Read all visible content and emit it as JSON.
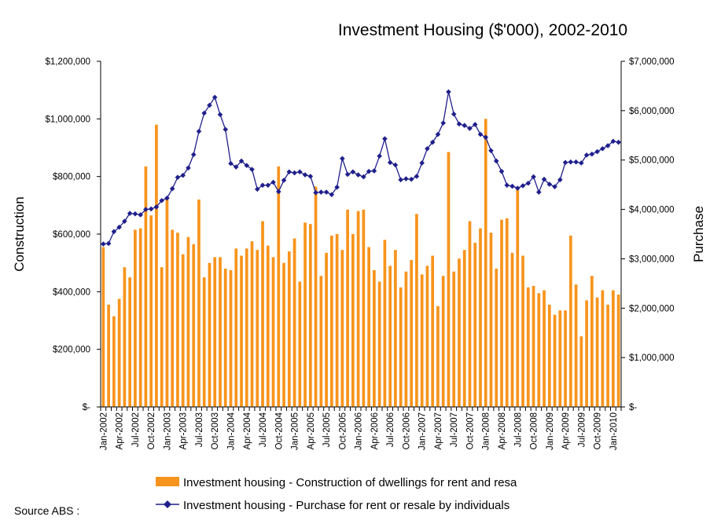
{
  "chart_data": {
    "type": "bar+line",
    "title": "Investment Housing ($'000), 2002-2010",
    "ylabel_left": "Construction",
    "ylabel_right": "Purchase",
    "ylim_left": [
      0,
      1200000
    ],
    "ylim_right": [
      0,
      7000000
    ],
    "left_ticks": [
      "$-",
      "$200,000",
      "$400,000",
      "$600,000",
      "$800,000",
      "$1,000,000",
      "$1,200,000"
    ],
    "right_ticks": [
      "$-",
      "$1,000,000",
      "$2,000,000",
      "$3,000,000",
      "$4,000,000",
      "$5,000,000",
      "$6,000,000",
      "$7,000,000"
    ],
    "x_tick_labels": [
      "Jan-2002",
      "Apr-2002",
      "Jul-2002",
      "Oct-2002",
      "Jan-2003",
      "Apr-2003",
      "Jul-2003",
      "Oct-2003",
      "Jan-2004",
      "Apr-2004",
      "Jul-2004",
      "Oct-2004",
      "Jan-2005",
      "Apr-2005",
      "Jul-2005",
      "Oct-2005",
      "Jan-2006",
      "Apr-2006",
      "Jul-2006",
      "Oct-2006",
      "Jan-2007",
      "Apr-2007",
      "Jul-2007",
      "Oct-2007",
      "Jan-2008",
      "Apr-2008",
      "Jul-2008",
      "Oct-2008",
      "Jan-2009",
      "Apr-2009",
      "Jul-2009",
      "Oct-2009",
      "Jan-2010"
    ],
    "start": "Jan-2002",
    "months": 98,
    "series": [
      {
        "name": "Investment housing - Construction of dwellings for rent and resale",
        "type": "bar",
        "axis": "left",
        "color": "#F7941D",
        "values": [
          555000,
          355000,
          315000,
          375000,
          485000,
          450000,
          615000,
          620000,
          835000,
          665000,
          980000,
          485000,
          725000,
          615000,
          605000,
          530000,
          590000,
          565000,
          720000,
          450000,
          500000,
          520000,
          520000,
          480000,
          475000,
          550000,
          525000,
          550000,
          575000,
          545000,
          645000,
          560000,
          520000,
          835000,
          500000,
          540000,
          585000,
          435000,
          640000,
          635000,
          765000,
          455000,
          535000,
          595000,
          600000,
          545000,
          685000,
          600000,
          680000,
          685000,
          555000,
          475000,
          435000,
          580000,
          490000,
          545000,
          415000,
          470000,
          510000,
          670000,
          460000,
          490000,
          525000,
          350000,
          455000,
          885000,
          470000,
          515000,
          545000,
          645000,
          570000,
          620000,
          1000000,
          605000,
          480000,
          650000,
          655000,
          535000,
          760000,
          525000,
          415000,
          420000,
          395000,
          405000,
          355000,
          320000,
          335000,
          335000,
          595000,
          425000,
          245000,
          370000,
          455000,
          380000,
          405000,
          355000,
          405000,
          390000
        ]
      },
      {
        "name": "Investment housing - Purchase for rent or resale by individuals",
        "type": "line",
        "axis": "right",
        "color": "#1F1F8C",
        "marker": "diamond",
        "values": [
          3300000,
          3310000,
          3550000,
          3640000,
          3760000,
          3920000,
          3910000,
          3890000,
          4000000,
          4010000,
          4050000,
          4180000,
          4230000,
          4420000,
          4650000,
          4690000,
          4840000,
          5110000,
          5580000,
          5950000,
          6110000,
          6270000,
          5920000,
          5620000,
          4930000,
          4860000,
          4980000,
          4890000,
          4810000,
          4410000,
          4490000,
          4490000,
          4550000,
          4360000,
          4590000,
          4760000,
          4740000,
          4760000,
          4700000,
          4670000,
          4340000,
          4350000,
          4350000,
          4300000,
          4450000,
          5030000,
          4710000,
          4760000,
          4700000,
          4660000,
          4770000,
          4780000,
          5080000,
          5430000,
          4950000,
          4900000,
          4600000,
          4620000,
          4610000,
          4670000,
          4940000,
          5230000,
          5360000,
          5520000,
          5750000,
          6380000,
          5930000,
          5730000,
          5700000,
          5640000,
          5720000,
          5520000,
          5460000,
          5190000,
          4980000,
          4770000,
          4490000,
          4470000,
          4430000,
          4480000,
          4530000,
          4660000,
          4350000,
          4610000,
          4510000,
          4460000,
          4600000,
          4950000,
          4960000,
          4960000,
          4940000,
          5100000,
          5120000,
          5170000,
          5230000,
          5290000,
          5380000,
          5360000
        ]
      }
    ],
    "legend": [
      {
        "label": "Investment housing - Construction of dwellings for rent and resa",
        "symbol": "bar",
        "color": "#F7941D"
      },
      {
        "label": "Investment housing - Purchase for rent or resale by individuals",
        "symbol": "line-diamond",
        "color": "#1F1F8C"
      }
    ]
  },
  "source_text": "Source ABS :"
}
